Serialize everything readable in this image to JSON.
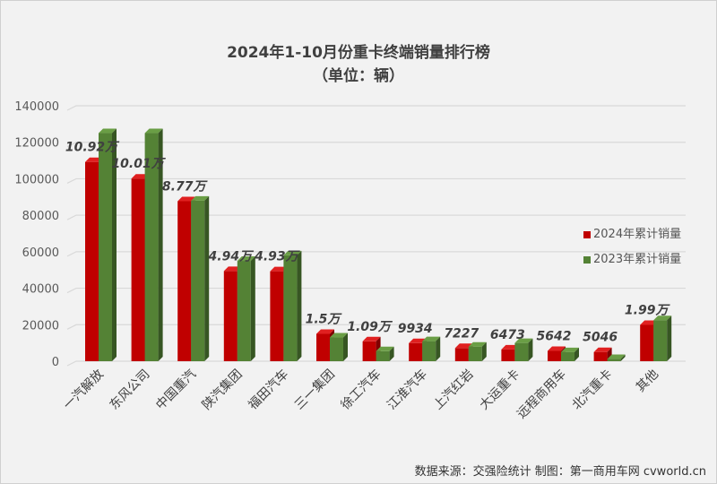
{
  "chart_data": {
    "type": "bar",
    "title": "2024年1-10月份重卡终端销量排行榜",
    "subtitle": "（单位：辆）",
    "categories": [
      "一汽解放",
      "东风公司",
      "中国重汽",
      "陕汽集团",
      "福田汽车",
      "三一集团",
      "徐工汽车",
      "江淮汽车",
      "上汽红岩",
      "大运重卡",
      "远程商用车",
      "北汽重卡",
      "其他"
    ],
    "series": [
      {
        "name": "2024年累计销量",
        "color": "#c00000",
        "values": [
          109200,
          100100,
          87700,
          49400,
          49300,
          15000,
          10900,
          9934,
          7227,
          6473,
          5642,
          5046,
          19900
        ]
      },
      {
        "name": "2023年累计销量",
        "color": "#548235",
        "values": [
          125000,
          125000,
          88000,
          55000,
          58000,
          13000,
          5500,
          11000,
          8000,
          10000,
          5000,
          1200,
          22500
        ]
      }
    ],
    "data_labels": [
      "10.92万",
      "10.01万",
      "8.77万",
      "4.94万",
      "4.93万",
      "1.5万",
      "1.09万",
      "9934",
      "7227",
      "6473",
      "5642",
      "5046",
      "1.99万"
    ],
    "yticks": [
      "0",
      "20000",
      "40000",
      "60000",
      "80000",
      "100000",
      "120000",
      "140000"
    ],
    "ylim": [
      0,
      140000
    ],
    "grid": true,
    "legend_position": "right",
    "xlabel": "",
    "ylabel": ""
  },
  "footer": "数据来源：交强险统计  制图：第一商用车网 cvworld.cn"
}
